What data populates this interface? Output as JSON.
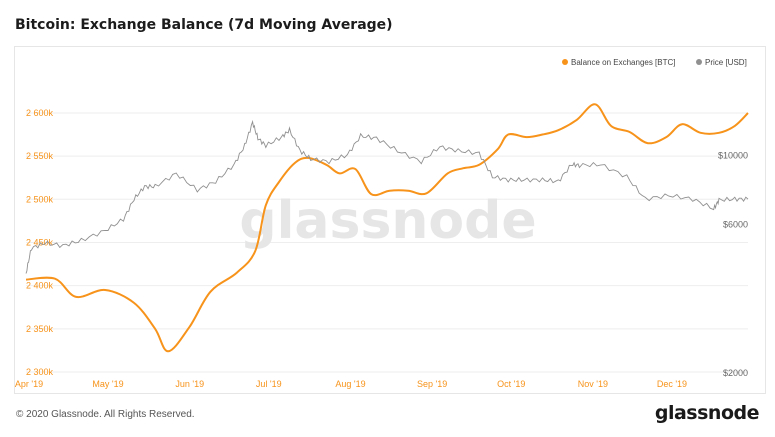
{
  "title": "Bitcoin: Exchange Balance (7d Moving Average)",
  "footer": "© 2020 Glassnode. All Rights Reserved.",
  "brand": "glassnode",
  "watermark": "glassnode",
  "colors": {
    "balance": "#f7931a",
    "price": "#909090",
    "grid": "#eeeeee",
    "watermark": "#e6e6e6"
  },
  "chart_data": {
    "type": "line",
    "title": "Bitcoin: Exchange Balance (7d Moving Average)",
    "grid": true,
    "legend_position": "top-right",
    "x_labels": [
      "Apr '19",
      "May '19",
      "Jun '19",
      "Jul '19",
      "Aug '19",
      "Sep '19",
      "Oct '19",
      "Nov '19",
      "Dec '19"
    ],
    "x_range": [
      "2019-04-01",
      "2019-12-31"
    ],
    "y_left": {
      "ticks": [
        2300000,
        2350000,
        2400000,
        2450000,
        2500000,
        2550000,
        2600000
      ],
      "tick_labels": [
        "2 300k",
        "2 350k",
        "2 400k",
        "2 450k",
        "2 500k",
        "2 550k",
        "2 600k"
      ],
      "range": [
        2300000,
        2615000
      ]
    },
    "y_right": {
      "scale": "log",
      "ticks": [
        2000,
        6000,
        10000
      ],
      "tick_labels": [
        "$2000",
        "$6000",
        "$10000"
      ],
      "range": [
        2000,
        15000
      ]
    },
    "series": [
      {
        "name": "Balance on Exchanges [BTC]",
        "axis": "left",
        "x": [
          "2019-04-01",
          "2019-04-12",
          "2019-04-20",
          "2019-05-01",
          "2019-05-12",
          "2019-05-20",
          "2019-05-25",
          "2019-06-02",
          "2019-06-10",
          "2019-06-20",
          "2019-06-27",
          "2019-07-01",
          "2019-07-06",
          "2019-07-12",
          "2019-07-17",
          "2019-07-24",
          "2019-07-29",
          "2019-08-04",
          "2019-08-10",
          "2019-08-17",
          "2019-08-24",
          "2019-08-31",
          "2019-09-08",
          "2019-09-14",
          "2019-09-20",
          "2019-09-27",
          "2019-10-01",
          "2019-10-08",
          "2019-10-14",
          "2019-10-20",
          "2019-10-27",
          "2019-11-03",
          "2019-11-09",
          "2019-11-16",
          "2019-11-23",
          "2019-11-30",
          "2019-12-06",
          "2019-12-13",
          "2019-12-20",
          "2019-12-26",
          "2019-12-31"
        ],
        "y": [
          2407000,
          2408000,
          2387000,
          2395000,
          2380000,
          2350000,
          2324000,
          2352000,
          2393000,
          2415000,
          2440000,
          2493000,
          2520000,
          2542000,
          2548000,
          2540000,
          2530000,
          2535000,
          2506000,
          2510000,
          2510000,
          2507000,
          2530000,
          2536000,
          2540000,
          2558000,
          2575000,
          2572000,
          2575000,
          2580000,
          2592000,
          2610000,
          2585000,
          2578000,
          2565000,
          2572000,
          2587000,
          2577000,
          2577000,
          2585000,
          2600000
        ]
      },
      {
        "name": "Price [USD]",
        "axis": "right",
        "x": [
          "2019-04-01",
          "2019-04-03",
          "2019-04-08",
          "2019-04-15",
          "2019-04-22",
          "2019-05-01",
          "2019-05-08",
          "2019-05-12",
          "2019-05-16",
          "2019-05-20",
          "2019-05-28",
          "2019-06-05",
          "2019-06-12",
          "2019-06-19",
          "2019-06-23",
          "2019-06-26",
          "2019-06-28",
          "2019-07-01",
          "2019-07-07",
          "2019-07-10",
          "2019-07-14",
          "2019-07-18",
          "2019-07-25",
          "2019-08-01",
          "2019-08-06",
          "2019-08-12",
          "2019-08-20",
          "2019-08-29",
          "2019-09-05",
          "2019-09-12",
          "2019-09-20",
          "2019-09-25",
          "2019-10-01",
          "2019-10-07",
          "2019-10-14",
          "2019-10-20",
          "2019-10-25",
          "2019-10-28",
          "2019-11-05",
          "2019-11-15",
          "2019-11-22",
          "2019-12-01",
          "2019-12-10",
          "2019-12-18",
          "2019-12-20",
          "2019-12-26",
          "2019-12-31"
        ],
        "y": [
          4150,
          5000,
          5200,
          5100,
          5300,
          5700,
          6200,
          7200,
          7900,
          7900,
          8700,
          7700,
          8200,
          9300,
          10700,
          12700,
          11300,
          10700,
          11400,
          12000,
          10300,
          9700,
          9500,
          10000,
          11500,
          11300,
          10300,
          9500,
          10600,
          10300,
          10100,
          8500,
          8300,
          8300,
          8300,
          8200,
          9300,
          9250,
          9300,
          8500,
          7200,
          7400,
          7200,
          6700,
          7150,
          7200,
          7200
        ]
      }
    ]
  }
}
